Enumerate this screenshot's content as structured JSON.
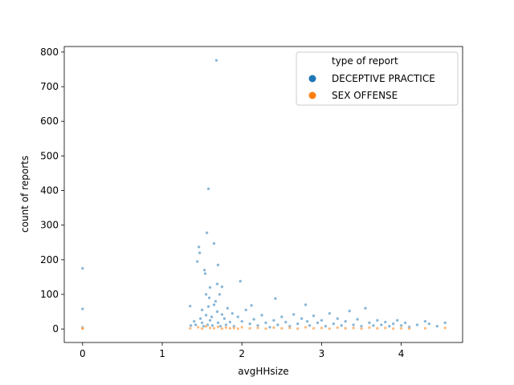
{
  "chart_data": {
    "type": "scatter",
    "xlabel": "avgHHsize",
    "ylabel": "count of reports",
    "xlim": [
      -0.23,
      4.77
    ],
    "ylim": [
      -39,
      816
    ],
    "xticks": [
      0,
      1,
      2,
      3,
      4
    ],
    "yticks": [
      0,
      100,
      200,
      300,
      400,
      500,
      600,
      700,
      800
    ],
    "grid": false,
    "legend": {
      "title": "type of report",
      "placement": "top-right",
      "entries": [
        "DECEPTIVE PRACTICE",
        "SEX OFFENSE"
      ]
    },
    "series": [
      {
        "name": "DECEPTIVE PRACTICE",
        "color": "#1f77b4",
        "points": [
          [
            0,
            175
          ],
          [
            0,
            58
          ],
          [
            0,
            5
          ],
          [
            1.35,
            66
          ],
          [
            1.36,
            10
          ],
          [
            1.4,
            22
          ],
          [
            1.42,
            12
          ],
          [
            1.44,
            195
          ],
          [
            1.46,
            237
          ],
          [
            1.47,
            220
          ],
          [
            1.48,
            30
          ],
          [
            1.5,
            55
          ],
          [
            1.5,
            18
          ],
          [
            1.52,
            8
          ],
          [
            1.53,
            170
          ],
          [
            1.54,
            160
          ],
          [
            1.55,
            100
          ],
          [
            1.55,
            40
          ],
          [
            1.56,
            278
          ],
          [
            1.57,
            12
          ],
          [
            1.58,
            405
          ],
          [
            1.58,
            65
          ],
          [
            1.59,
            90
          ],
          [
            1.6,
            120
          ],
          [
            1.6,
            25
          ],
          [
            1.62,
            35
          ],
          [
            1.63,
            10
          ],
          [
            1.65,
            70
          ],
          [
            1.65,
            247
          ],
          [
            1.67,
            80
          ],
          [
            1.68,
            776
          ],
          [
            1.69,
            130
          ],
          [
            1.69,
            50
          ],
          [
            1.7,
            185
          ],
          [
            1.7,
            18
          ],
          [
            1.72,
            100
          ],
          [
            1.73,
            8
          ],
          [
            1.75,
            122
          ],
          [
            1.75,
            42
          ],
          [
            1.78,
            30
          ],
          [
            1.8,
            12
          ],
          [
            1.82,
            60
          ],
          [
            1.85,
            20
          ],
          [
            1.88,
            45
          ],
          [
            1.9,
            8
          ],
          [
            1.95,
            35
          ],
          [
            1.98,
            138
          ],
          [
            2.0,
            22
          ],
          [
            2.05,
            55
          ],
          [
            2.1,
            15
          ],
          [
            2.12,
            68
          ],
          [
            2.15,
            28
          ],
          [
            2.2,
            10
          ],
          [
            2.25,
            40
          ],
          [
            2.3,
            18
          ],
          [
            2.35,
            5
          ],
          [
            2.4,
            25
          ],
          [
            2.42,
            88
          ],
          [
            2.45,
            12
          ],
          [
            2.5,
            35
          ],
          [
            2.55,
            20
          ],
          [
            2.6,
            8
          ],
          [
            2.65,
            42
          ],
          [
            2.7,
            15
          ],
          [
            2.75,
            30
          ],
          [
            2.8,
            70
          ],
          [
            2.82,
            22
          ],
          [
            2.85,
            10
          ],
          [
            2.9,
            38
          ],
          [
            2.95,
            18
          ],
          [
            3.0,
            25
          ],
          [
            3.05,
            8
          ],
          [
            3.1,
            45
          ],
          [
            3.15,
            15
          ],
          [
            3.2,
            30
          ],
          [
            3.25,
            10
          ],
          [
            3.3,
            22
          ],
          [
            3.35,
            52
          ],
          [
            3.4,
            12
          ],
          [
            3.45,
            28
          ],
          [
            3.5,
            8
          ],
          [
            3.55,
            60
          ],
          [
            3.6,
            18
          ],
          [
            3.65,
            10
          ],
          [
            3.7,
            25
          ],
          [
            3.75,
            12
          ],
          [
            3.8,
            20
          ],
          [
            3.85,
            8
          ],
          [
            3.9,
            15
          ],
          [
            3.95,
            25
          ],
          [
            4.0,
            10
          ],
          [
            4.05,
            18
          ],
          [
            4.1,
            6
          ],
          [
            4.2,
            12
          ],
          [
            4.3,
            22
          ],
          [
            4.35,
            15
          ],
          [
            4.45,
            8
          ],
          [
            4.55,
            18
          ]
        ]
      },
      {
        "name": "SEX OFFENSE",
        "color": "#ff7f0e",
        "points": [
          [
            0,
            3
          ],
          [
            0,
            1
          ],
          [
            1.35,
            2
          ],
          [
            1.45,
            5
          ],
          [
            1.5,
            1
          ],
          [
            1.55,
            8
          ],
          [
            1.6,
            3
          ],
          [
            1.65,
            2
          ],
          [
            1.7,
            6
          ],
          [
            1.75,
            1
          ],
          [
            1.8,
            4
          ],
          [
            1.85,
            2
          ],
          [
            1.9,
            3
          ],
          [
            1.95,
            1
          ],
          [
            2.0,
            5
          ],
          [
            2.1,
            2
          ],
          [
            2.2,
            3
          ],
          [
            2.3,
            1
          ],
          [
            2.4,
            4
          ],
          [
            2.5,
            2
          ],
          [
            2.6,
            3
          ],
          [
            2.7,
            1
          ],
          [
            2.8,
            5
          ],
          [
            2.9,
            2
          ],
          [
            3.0,
            3
          ],
          [
            3.1,
            1
          ],
          [
            3.2,
            4
          ],
          [
            3.3,
            2
          ],
          [
            3.4,
            3
          ],
          [
            3.5,
            1
          ],
          [
            3.6,
            4
          ],
          [
            3.7,
            2
          ],
          [
            3.8,
            3
          ],
          [
            3.9,
            1
          ],
          [
            4.0,
            2
          ],
          [
            4.1,
            1
          ],
          [
            4.3,
            2
          ],
          [
            4.55,
            3
          ]
        ]
      }
    ]
  }
}
